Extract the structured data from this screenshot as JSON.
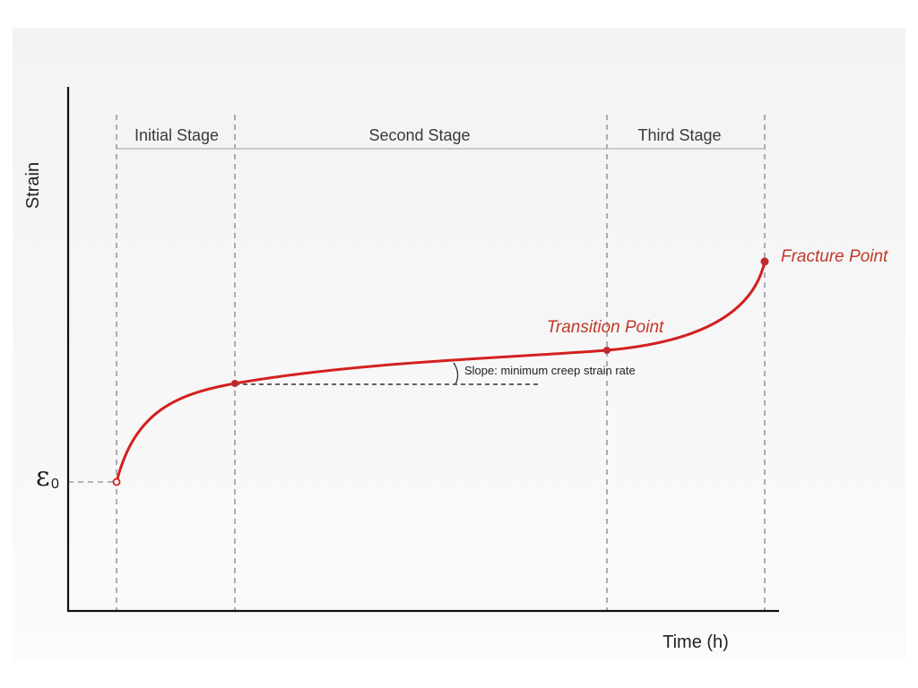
{
  "axes": {
    "ylabel": "Strain",
    "xlabel": "Time (h)",
    "origin_label": "ε",
    "origin_subscript": "0"
  },
  "stages": [
    {
      "label": "Initial Stage"
    },
    {
      "label": "Second Stage"
    },
    {
      "label": "Third Stage"
    }
  ],
  "annotations": {
    "transition_point": "Transition Point",
    "fracture_point": "Fracture Point",
    "slope": "Slope: minimum creep strain rate"
  },
  "colors": {
    "curve": "#d32020",
    "annotation_text": "#c0392b",
    "axis": "#111111",
    "dashed_guides": "#9a9a9a",
    "stage_bar": "#bbbbbb"
  }
}
